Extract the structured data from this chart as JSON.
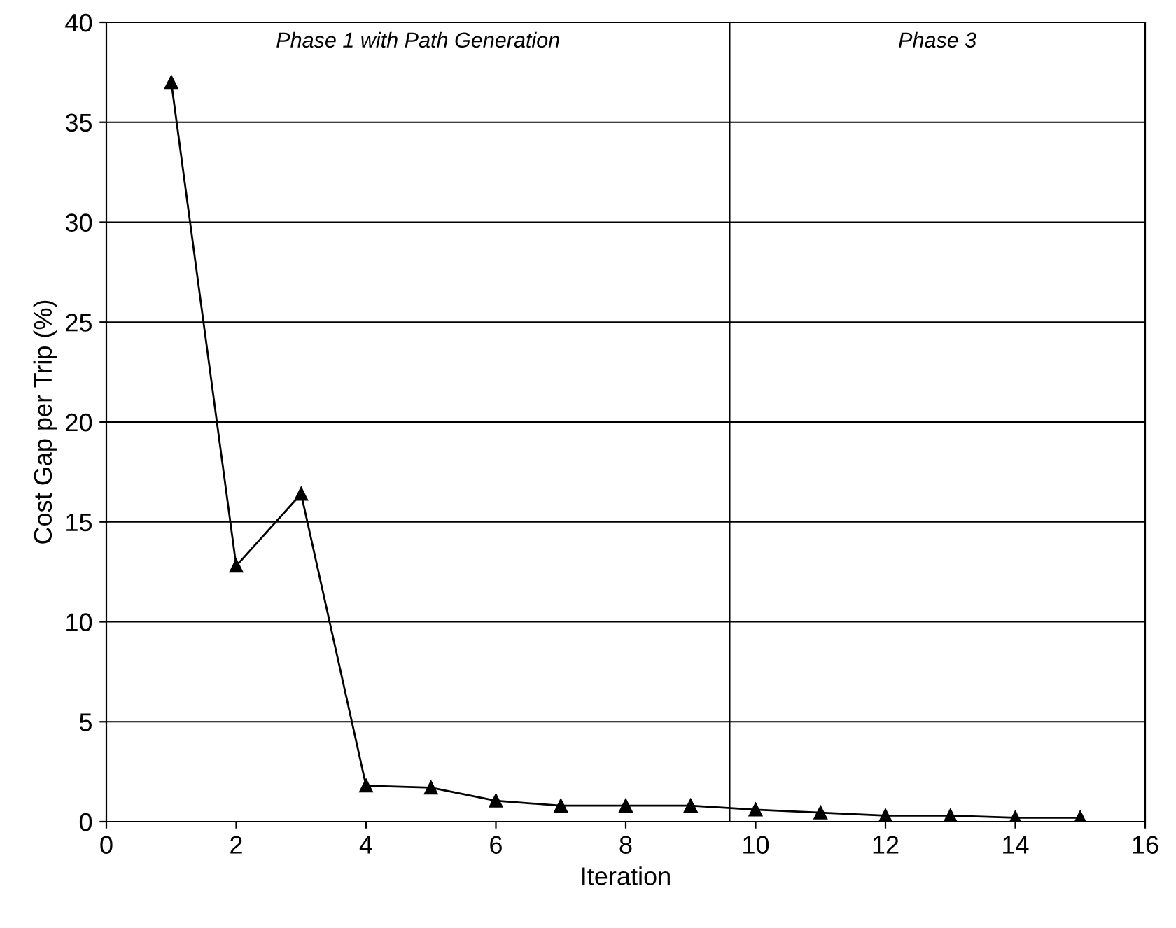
{
  "chart_data": {
    "type": "line",
    "xlabel": "Iteration",
    "ylabel": "Cost Gap per Trip (%)",
    "x": [
      1,
      2,
      3,
      4,
      5,
      6,
      7,
      8,
      9,
      10,
      11,
      12,
      13,
      14,
      15
    ],
    "series": [
      {
        "color": "#000000",
        "values": [
          37.0,
          12.8,
          16.4,
          1.8,
          1.7,
          1.05,
          0.8,
          0.8,
          0.8,
          0.6,
          0.45,
          0.3,
          0.3,
          0.2,
          0.2
        ]
      }
    ],
    "xlim": [
      0,
      16
    ],
    "xticks": [
      0,
      2,
      4,
      6,
      8,
      10,
      12,
      14,
      16
    ],
    "ylim": [
      0,
      40
    ],
    "yticks": [
      0,
      5,
      10,
      15,
      20,
      25,
      30,
      35,
      40
    ],
    "ref_lines": [
      {
        "axis": "x",
        "value": 9.6,
        "color": "#000000"
      }
    ],
    "annotations": [
      "Phase 1 with Path Generation",
      "Phase 3"
    ],
    "grid": "y",
    "marker": "triangle",
    "line_style": "solid"
  }
}
